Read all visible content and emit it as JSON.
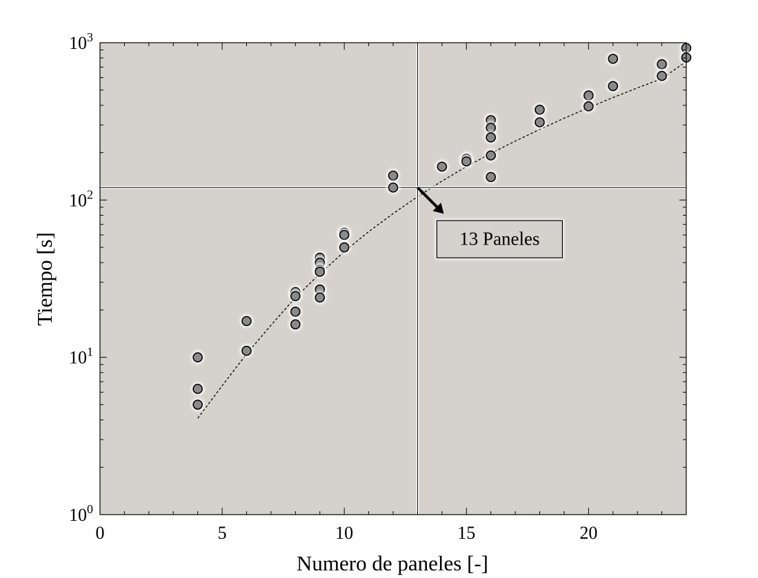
{
  "chart_data": {
    "type": "scatter",
    "xlabel": "Numero de paneles [-]",
    "ylabel": "Tiempo [s]",
    "xlim": [
      0,
      24
    ],
    "ylim": [
      1,
      1000
    ],
    "yscale": "log",
    "xticks": [
      "0",
      "5",
      "10",
      "15",
      "20"
    ],
    "yticks": [
      {
        "base": "10",
        "exp": "0"
      },
      {
        "base": "10",
        "exp": "1"
      },
      {
        "base": "10",
        "exp": "2"
      },
      {
        "base": "10",
        "exp": "3"
      }
    ],
    "grid": false,
    "background_color": "#d5d1cc",
    "marker_color": "#8a8a8a",
    "points": [
      [
        4,
        10
      ],
      [
        4,
        6.3
      ],
      [
        4,
        5
      ],
      [
        6,
        17
      ],
      [
        6,
        11
      ],
      [
        8,
        26
      ],
      [
        8,
        24.5
      ],
      [
        8,
        19.5
      ],
      [
        8,
        16.2
      ],
      [
        9,
        43
      ],
      [
        9,
        40
      ],
      [
        9,
        36
      ],
      [
        9,
        35
      ],
      [
        9,
        27
      ],
      [
        9,
        24
      ],
      [
        10,
        62
      ],
      [
        10,
        60
      ],
      [
        10,
        50
      ],
      [
        12,
        143
      ],
      [
        12,
        120
      ],
      [
        14,
        163
      ],
      [
        15,
        183
      ],
      [
        15,
        176
      ],
      [
        16,
        322
      ],
      [
        16,
        288
      ],
      [
        16,
        250
      ],
      [
        16,
        192
      ],
      [
        16,
        140
      ],
      [
        18,
        375
      ],
      [
        18,
        312
      ],
      [
        20,
        462
      ],
      [
        20,
        394
      ],
      [
        21,
        790
      ],
      [
        21,
        530
      ],
      [
        23,
        730
      ],
      [
        23,
        615
      ],
      [
        24,
        925
      ],
      [
        24,
        805
      ]
    ],
    "fit_curve": [
      [
        4,
        4.1
      ],
      [
        5,
        6.6
      ],
      [
        6,
        10.5
      ],
      [
        7,
        16
      ],
      [
        8,
        24
      ],
      [
        9,
        34
      ],
      [
        10,
        47
      ],
      [
        11,
        63
      ],
      [
        12,
        82
      ],
      [
        13,
        105
      ],
      [
        14,
        132
      ],
      [
        15,
        163
      ],
      [
        16,
        198
      ],
      [
        17,
        237
      ],
      [
        18,
        281
      ],
      [
        19,
        331
      ],
      [
        20,
        386
      ],
      [
        21,
        448
      ],
      [
        22,
        516
      ],
      [
        23,
        591
      ],
      [
        24,
        760
      ]
    ],
    "reference_lines": {
      "x": 13,
      "y": 120
    },
    "annotation": {
      "text": "13 Paneles",
      "point": [
        13,
        120
      ]
    }
  }
}
